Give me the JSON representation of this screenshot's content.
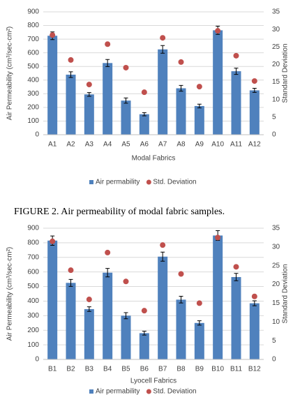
{
  "chart_data": [
    {
      "type": "bar",
      "x_label": "Modal Fabrics",
      "y_label": "Air Permeability (cm³/sec·cm²)",
      "y2_label": "Standard Deviation",
      "categories": [
        "A1",
        "A2",
        "A3",
        "A4",
        "A5",
        "A6",
        "A7",
        "A8",
        "A9",
        "A10",
        "A11",
        "A12"
      ],
      "series": [
        {
          "name": "Air permability",
          "type": "bar",
          "color": "#4f81bd",
          "values": [
            725,
            440,
            295,
            525,
            250,
            150,
            625,
            340,
            210,
            765,
            465,
            325
          ],
          "errors": [
            28,
            21,
            14,
            26,
            19,
            12,
            28,
            21,
            14,
            30,
            23,
            15
          ]
        },
        {
          "name": "Std. Deviation",
          "type": "scatter",
          "axis": "y2",
          "color": "#c0504d",
          "values": [
            28.4,
            21.3,
            14.3,
            25.8,
            19.1,
            12.1,
            27.6,
            20.7,
            13.7,
            29.6,
            22.5,
            15.3
          ]
        }
      ],
      "ylim": [
        0,
        900
      ],
      "yticks": [
        0,
        100,
        200,
        300,
        400,
        500,
        600,
        700,
        800,
        900
      ],
      "y2lim": [
        0,
        35
      ],
      "y2ticks": [
        0,
        5,
        10,
        15,
        20,
        25,
        30,
        35
      ],
      "grid": true,
      "legend": "bottom"
    },
    {
      "type": "bar",
      "x_label": "Lyocell Fabrics",
      "y_label": "Air Permeability (cm³/sec·cm²)",
      "y2_label": "Standard Deviation",
      "categories": [
        "B1",
        "B2",
        "B3",
        "B4",
        "B5",
        "B6",
        "B7",
        "B8",
        "B9",
        "B10",
        "B11",
        "B12"
      ],
      "series": [
        {
          "name": "Air permability",
          "type": "bar",
          "color": "#4f81bd",
          "values": [
            815,
            525,
            345,
            595,
            300,
            180,
            705,
            410,
            250,
            850,
            565,
            385
          ],
          "errors": [
            32,
            24,
            16,
            29,
            21,
            13,
            31,
            23,
            15,
            33,
            25,
            17
          ]
        },
        {
          "name": "Std. Deviation",
          "type": "scatter",
          "axis": "y2",
          "color": "#c0504d",
          "values": [
            31.5,
            23.8,
            16,
            28.5,
            20.8,
            13,
            30.5,
            22.8,
            15,
            32.5,
            24.7,
            16.8
          ]
        }
      ],
      "ylim": [
        0,
        900
      ],
      "yticks": [
        0,
        100,
        200,
        300,
        400,
        500,
        600,
        700,
        800,
        900
      ],
      "y2lim": [
        0,
        35
      ],
      "y2ticks": [
        0,
        5,
        10,
        15,
        20,
        25,
        30,
        35
      ],
      "grid": true,
      "legend": "bottom"
    }
  ],
  "caption": "FIGURE 2. Air permeability of modal fabric samples."
}
